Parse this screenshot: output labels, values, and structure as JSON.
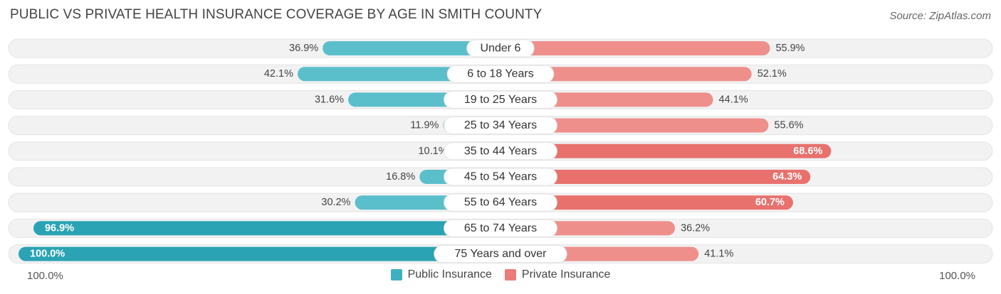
{
  "title": "PUBLIC VS PRIVATE HEALTH INSURANCE COVERAGE BY AGE IN SMITH COUNTY",
  "source": "Source: ZipAtlas.com",
  "footer": {
    "left_label": "100.0%",
    "right_label": "100.0%"
  },
  "colors": {
    "public": "#5bbfcb",
    "public_dark": "#2aa3b4",
    "private": "#ee8f8c",
    "private_dark": "#e8716d",
    "track": "#f2f2f2"
  },
  "legend": [
    {
      "label": "Public Insurance",
      "color": "#3fb0c0"
    },
    {
      "label": "Private Insurance",
      "color": "#ea7d79"
    }
  ],
  "chart_data": {
    "type": "bar",
    "orientation": "horizontal-diverging",
    "categories": [
      "Under 6",
      "6 to 18 Years",
      "19 to 25 Years",
      "25 to 34 Years",
      "35 to 44 Years",
      "45 to 54 Years",
      "55 to 64 Years",
      "65 to 74 Years",
      "75 Years and over"
    ],
    "series": [
      {
        "name": "Public Insurance",
        "values": [
          36.9,
          42.1,
          31.6,
          11.9,
          10.1,
          16.8,
          30.2,
          96.9,
          100.0
        ],
        "labels": [
          "36.9%",
          "42.1%",
          "31.6%",
          "11.9%",
          "10.1%",
          "16.8%",
          "30.2%",
          "96.9%",
          "100.0%"
        ]
      },
      {
        "name": "Private Insurance",
        "values": [
          55.9,
          52.1,
          44.1,
          55.6,
          68.6,
          64.3,
          60.7,
          36.2,
          41.1
        ],
        "labels": [
          "55.9%",
          "52.1%",
          "44.1%",
          "55.6%",
          "68.6%",
          "64.3%",
          "60.7%",
          "36.2%",
          "41.1%"
        ]
      }
    ],
    "xlim": [
      0,
      100
    ],
    "legend_position": "bottom-center"
  }
}
